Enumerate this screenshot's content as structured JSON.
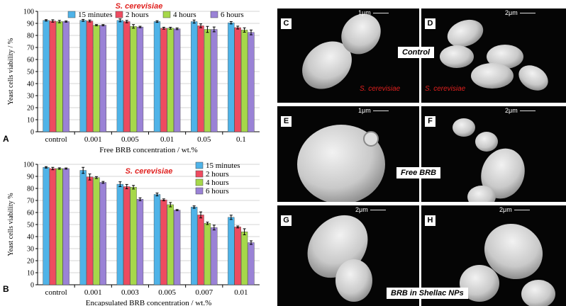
{
  "panels": {
    "a": "A",
    "b": "B",
    "c": "C",
    "d": "D",
    "e": "E",
    "f": "F",
    "g": "G",
    "h": "H"
  },
  "species": "S. cerevisiae",
  "scale_bars": {
    "c": "1μm",
    "d": "2μm",
    "e": "1μm",
    "f": "2μm",
    "g": "2μm",
    "h": "2μm"
  },
  "groups": {
    "control": "Control",
    "free": "Free BRB",
    "shellac": "BRB in Shellac NPs"
  },
  "colors": {
    "s1": "#4fb3e8",
    "s2": "#ee4b60",
    "s3": "#a6d84a",
    "s4": "#9a82d6",
    "title": "#e0201e"
  },
  "chart_data": [
    {
      "type": "bar",
      "title": "S. cerevisiae",
      "xlabel": "Free BRB concentration / wt.%",
      "ylabel": "Yeast cells viability / %",
      "ylim": [
        0,
        100
      ],
      "yticks": [
        0,
        10,
        20,
        30,
        40,
        50,
        60,
        70,
        80,
        90,
        100
      ],
      "legend": "top",
      "categories": [
        "control",
        "0.001",
        "0.005",
        "0.01",
        "0.05",
        "0.1"
      ],
      "series": [
        {
          "name": "15 minutes",
          "values": [
            92.5,
            92.5,
            92.5,
            91.5,
            91.5,
            90.5
          ],
          "errors": [
            0.6,
            0.8,
            1.2,
            0.7,
            1.3,
            1.0
          ]
        },
        {
          "name": "2 hours",
          "values": [
            92,
            92,
            91.5,
            86,
            88,
            86.5
          ],
          "errors": [
            1.0,
            0.8,
            1.0,
            0.8,
            1.6,
            1.2
          ]
        },
        {
          "name": "4 hours",
          "values": [
            91.5,
            88.5,
            87.5,
            86,
            85,
            84.5
          ],
          "errors": [
            1.0,
            0.5,
            1.5,
            0.8,
            2.5,
            1.8
          ]
        },
        {
          "name": "6 hours",
          "values": [
            91.5,
            88.5,
            87,
            85.5,
            85,
            82.5
          ],
          "errors": [
            0.5,
            0.5,
            0.6,
            0.7,
            2.0,
            2.0
          ]
        }
      ]
    },
    {
      "type": "bar",
      "title": "S. cerevisiae",
      "xlabel": "Encapsulated BRB concentration / wt.%",
      "ylabel": "Yeast cells viability %",
      "ylim": [
        0,
        100
      ],
      "yticks": [
        0,
        10,
        20,
        30,
        40,
        50,
        60,
        70,
        80,
        90,
        100
      ],
      "legend": "top-right",
      "categories": [
        "control",
        "0.001",
        "0.003",
        "0.005",
        "0.007",
        "0.01"
      ],
      "series": [
        {
          "name": "15 minutes",
          "values": [
            97.5,
            95,
            83.5,
            75,
            64.5,
            56
          ],
          "errors": [
            0.6,
            2.5,
            2.0,
            1.2,
            1.0,
            1.8
          ]
        },
        {
          "name": "2 hours",
          "values": [
            96.5,
            89.5,
            81.5,
            70.5,
            58,
            48
          ],
          "errors": [
            1.0,
            2.5,
            1.8,
            0.8,
            2.5,
            0.8
          ]
        },
        {
          "name": "4 hours",
          "values": [
            96.5,
            89,
            81,
            66.5,
            51,
            44
          ],
          "errors": [
            0.6,
            0.8,
            1.5,
            1.8,
            1.0,
            2.5
          ]
        },
        {
          "name": "6 hours",
          "values": [
            96.5,
            85,
            71,
            62,
            47.5,
            35
          ],
          "errors": [
            0.5,
            0.8,
            1.2,
            0.5,
            2.0,
            1.5
          ]
        }
      ]
    }
  ]
}
